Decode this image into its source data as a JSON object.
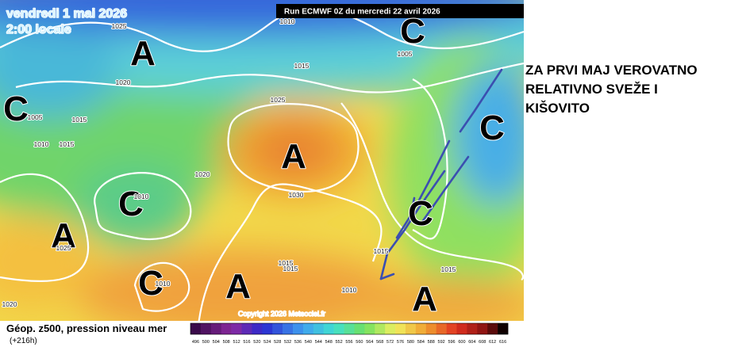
{
  "header": {
    "date": "vendredi 1 mai 2026",
    "time": "2:00 locale",
    "run": "Run ECMWF 0Z du mercredi 22 avril 2026"
  },
  "annotation": {
    "lines": [
      "ZA PRVI MAJ VEROVATNO",
      "RELATIVNO SVEŽE I",
      "KIŠOVITO"
    ]
  },
  "map": {
    "centers": [
      "A",
      "C",
      "C",
      "A",
      "C",
      "C",
      "A",
      "C",
      "C",
      "A",
      "A"
    ],
    "isobars": [
      "1025",
      "1010",
      "1005",
      "1015",
      "1020",
      "1025",
      "1005",
      "1015",
      "1010",
      "1015",
      "1020",
      "1030",
      "1010",
      "1025",
      "1015",
      "1015",
      "1010",
      "1010",
      "1015",
      "1015",
      "1020"
    ],
    "copyright": "Copyright 2026 Meteociel.fr"
  },
  "footer": {
    "title": "Géop. z500, pression niveau mer",
    "lead": "(+216h)",
    "scale": [
      496,
      500,
      504,
      508,
      512,
      516,
      520,
      524,
      528,
      532,
      536,
      540,
      544,
      548,
      552,
      556,
      560,
      564,
      568,
      572,
      576,
      580,
      584,
      588,
      592,
      596,
      600,
      604,
      608,
      612,
      616
    ]
  }
}
